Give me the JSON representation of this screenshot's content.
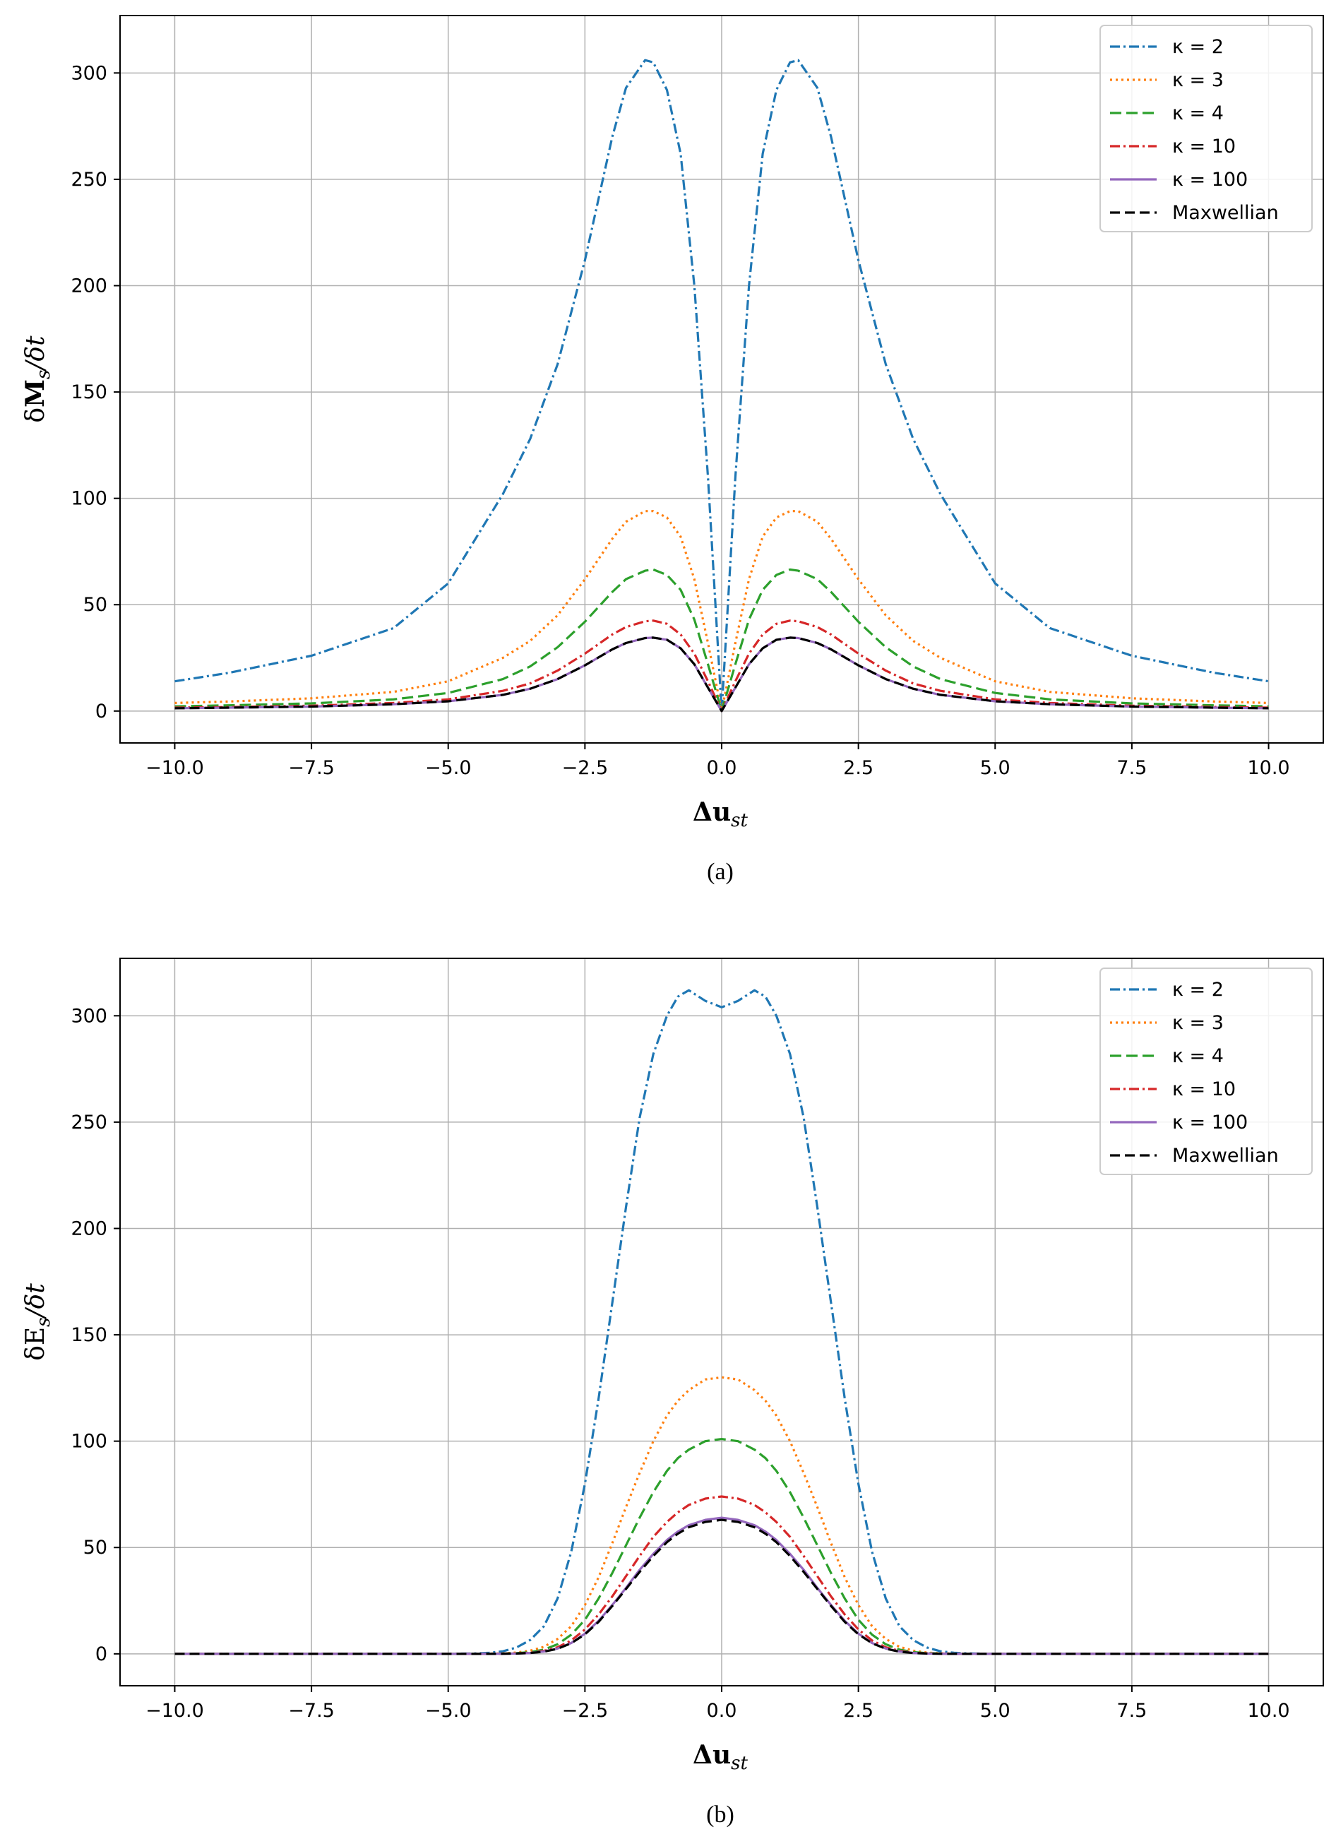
{
  "chart_data": [
    {
      "type": "line",
      "panel": "a",
      "caption": "(a)",
      "ylabel": "δM_s/δt",
      "ylabel_parts": {
        "delta": "δ",
        "main": "M",
        "sub": "s",
        "rest": "/δt"
      },
      "xlabel": "Δu_st",
      "xlabel_parts": {
        "main": "Δu",
        "sub": "st"
      },
      "xlim": [
        -11.0,
        11.0
      ],
      "ylim": [
        -15,
        327
      ],
      "xticks": [
        -10.0,
        -7.5,
        -5.0,
        -2.5,
        0.0,
        2.5,
        5.0,
        7.5,
        10.0
      ],
      "xtick_labels": [
        "−10.0",
        "−7.5",
        "−5.0",
        "−2.5",
        "0.0",
        "2.5",
        "5.0",
        "7.5",
        "10.0"
      ],
      "yticks": [
        0,
        50,
        100,
        150,
        200,
        250,
        300
      ],
      "ytick_labels": [
        "0",
        "50",
        "100",
        "150",
        "200",
        "250",
        "300"
      ],
      "grid": true,
      "legend_position": "top-right",
      "x": [
        0.0,
        0.25,
        0.5,
        0.75,
        1.0,
        1.25,
        1.4,
        1.75,
        2.0,
        2.5,
        3.0,
        3.5,
        4.0,
        5.0,
        6.0,
        7.5,
        9.0,
        10.0
      ],
      "series": [
        {
          "name": "κ = 2",
          "color": "#1f77b4",
          "dash": "14 5 3 5",
          "values": [
            0,
            110,
            200,
            262,
            292,
            305,
            306,
            293,
            270,
            212,
            163,
            128,
            102,
            60,
            39,
            26,
            18,
            14
          ]
        },
        {
          "name": "κ = 3",
          "color": "#ff7f0e",
          "dash": "3 5",
          "values": [
            0,
            32,
            62,
            82,
            91,
            94,
            94,
            89,
            81,
            62,
            45,
            33,
            25,
            14,
            9,
            6,
            4.5,
            3.8
          ]
        },
        {
          "name": "κ = 4",
          "color": "#2ca02c",
          "dash": "16 7",
          "values": [
            0,
            22,
            43,
            57,
            64,
            66.5,
            66,
            62,
            56,
            42,
            30,
            21,
            15,
            8.5,
            5.5,
            3.6,
            2.7,
            2.2
          ]
        },
        {
          "name": "κ = 10",
          "color": "#d62728",
          "dash": "14 5 3 5",
          "values": [
            0,
            14,
            27,
            36,
            41,
            42.5,
            42.2,
            39.5,
            36,
            27,
            19,
            13,
            9.5,
            5.5,
            3.8,
            2.5,
            1.9,
            1.6
          ]
        },
        {
          "name": "κ = 100",
          "color": "#9467bd",
          "dash": "",
          "values": [
            0,
            11,
            22,
            29.5,
            33.5,
            34.5,
            34.3,
            32,
            29,
            21.5,
            15,
            10.5,
            7.6,
            4.6,
            3.2,
            2.1,
            1.6,
            1.3
          ]
        },
        {
          "name": "Maxwellian",
          "color": "#000000",
          "dash": "14 7",
          "values": [
            0,
            11,
            22,
            29.5,
            33.5,
            34.5,
            34.3,
            32,
            29,
            21.5,
            15,
            10.5,
            7.6,
            4.6,
            3.2,
            2.1,
            1.6,
            1.3
          ]
        }
      ]
    },
    {
      "type": "line",
      "panel": "b",
      "caption": "(b)",
      "ylabel": "δE_s/δt",
      "ylabel_parts": {
        "delta": "δ",
        "main": "E",
        "sub": "s",
        "rest": "/δt"
      },
      "xlabel": "Δu_st",
      "xlabel_parts": {
        "main": "Δu",
        "sub": "st"
      },
      "xlim": [
        -11.0,
        11.0
      ],
      "ylim": [
        -15,
        327
      ],
      "xticks": [
        -10.0,
        -7.5,
        -5.0,
        -2.5,
        0.0,
        2.5,
        5.0,
        7.5,
        10.0
      ],
      "xtick_labels": [
        "−10.0",
        "−7.5",
        "−5.0",
        "−2.5",
        "0.0",
        "2.5",
        "5.0",
        "7.5",
        "10.0"
      ],
      "yticks": [
        0,
        50,
        100,
        150,
        200,
        250,
        300
      ],
      "ytick_labels": [
        "0",
        "50",
        "100",
        "150",
        "200",
        "250",
        "300"
      ],
      "grid": true,
      "legend_position": "top-right",
      "x": [
        0.0,
        0.3,
        0.6,
        0.8,
        1.0,
        1.25,
        1.5,
        1.75,
        2.0,
        2.25,
        2.5,
        2.75,
        3.0,
        3.25,
        3.5,
        3.75,
        4.0,
        4.25,
        4.5,
        5.0,
        7.5,
        10.0
      ],
      "series": [
        {
          "name": "κ = 2",
          "color": "#1f77b4",
          "dash": "14 5 3 5",
          "values": [
            304,
            307,
            312,
            309,
            300,
            282,
            252,
            210,
            165,
            120,
            80,
            48,
            26,
            13,
            6.5,
            3,
            1.2,
            0.5,
            0.2,
            0,
            0,
            0
          ]
        },
        {
          "name": "κ = 3",
          "color": "#ff7f0e",
          "dash": "3 5",
          "values": [
            130,
            129,
            124,
            119,
            112,
            100,
            85,
            69,
            52,
            36,
            23,
            13,
            7,
            3.3,
            1.5,
            0.6,
            0.2,
            0.1,
            0,
            0,
            0,
            0
          ]
        },
        {
          "name": "κ = 4",
          "color": "#2ca02c",
          "dash": "16 7",
          "values": [
            101,
            100,
            96,
            92,
            86,
            76,
            64,
            51,
            38,
            26,
            16,
            9,
            4.5,
            2,
            0.8,
            0.3,
            0.1,
            0,
            0,
            0,
            0,
            0
          ]
        },
        {
          "name": "κ = 10",
          "color": "#d62728",
          "dash": "14 5 3 5",
          "values": [
            74,
            73,
            70,
            66.5,
            62,
            55,
            46,
            36.5,
            27,
            18.5,
            11.5,
            6.3,
            3.1,
            1.4,
            0.5,
            0.2,
            0.1,
            0,
            0,
            0,
            0,
            0
          ]
        },
        {
          "name": "κ = 100",
          "color": "#9467bd",
          "dash": "",
          "values": [
            64,
            63,
            60.5,
            57.5,
            53.5,
            47,
            39.5,
            31,
            23,
            15.5,
            9.5,
            5.1,
            2.5,
            1.1,
            0.4,
            0.15,
            0.05,
            0,
            0,
            0,
            0,
            0
          ]
        },
        {
          "name": "Maxwellian",
          "color": "#000000",
          "dash": "14 7",
          "values": [
            63,
            62,
            59.5,
            56.5,
            52.5,
            46,
            38.5,
            30.5,
            22.5,
            15,
            9.2,
            5,
            2.4,
            1,
            0.4,
            0.15,
            0.05,
            0,
            0,
            0,
            0,
            0
          ]
        }
      ]
    }
  ]
}
